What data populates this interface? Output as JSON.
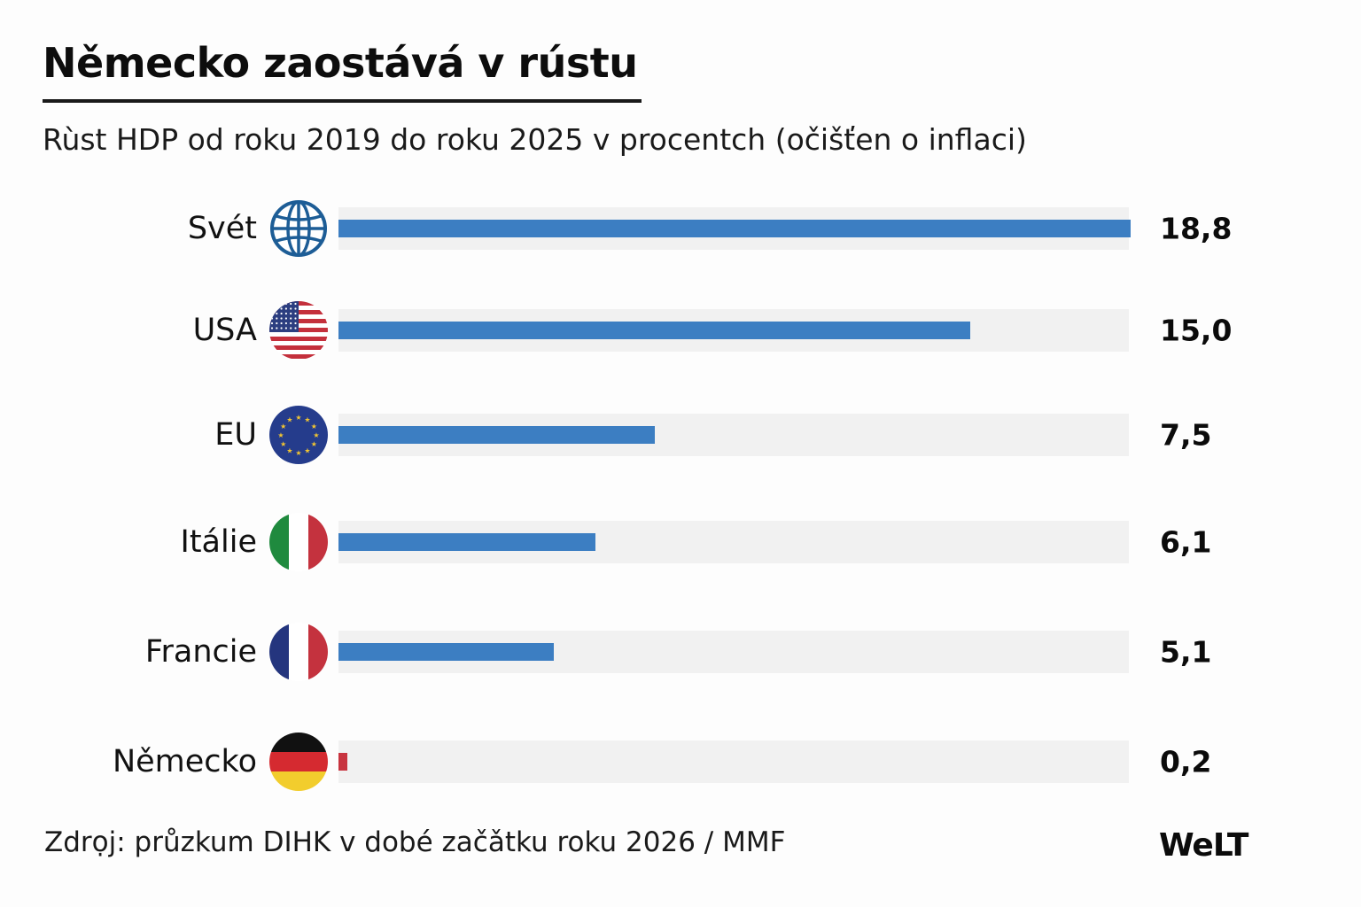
{
  "header": {
    "title": "Německo zaostává v rústu",
    "subtitle": "Rùst HDP od roku 2019 do roku 2025 v procentch (očišťen o inflaci)"
  },
  "footer": {
    "source": "Zdrọj: průzkum DIHK v dobé začǎtku roku 2026 / MMF",
    "logo": "WeLT"
  },
  "colors": {
    "bar_default": "#3c7ec2",
    "bar_highlight": "#c8343f",
    "track": "#f1f1f1"
  },
  "chart_data": {
    "type": "bar",
    "orientation": "horizontal",
    "title": "Německo zaostává v rústu",
    "subtitle": "Rùst HDP od roku 2019 do roku 2025 v procentch (očišťen o inflaci)",
    "xlabel": "",
    "ylabel": "",
    "xlim": [
      0,
      18.8
    ],
    "grid": false,
    "legend": "none",
    "categories": [
      "Svét",
      "USA",
      "EU",
      "Itálie",
      "Francie",
      "Německo"
    ],
    "values": [
      18.8,
      15.0,
      7.5,
      6.1,
      5.1,
      0.2
    ],
    "value_labels": [
      "18,8",
      "15,0",
      "7,5",
      "6,1",
      "5,1",
      "0,2"
    ],
    "icons": [
      "globe-icon",
      "usa-flag-icon",
      "eu-flag-icon",
      "italy-flag-icon",
      "france-flag-icon",
      "germany-flag-icon"
    ],
    "highlight": [
      "default",
      "default",
      "default",
      "default",
      "default",
      "highlight"
    ]
  }
}
